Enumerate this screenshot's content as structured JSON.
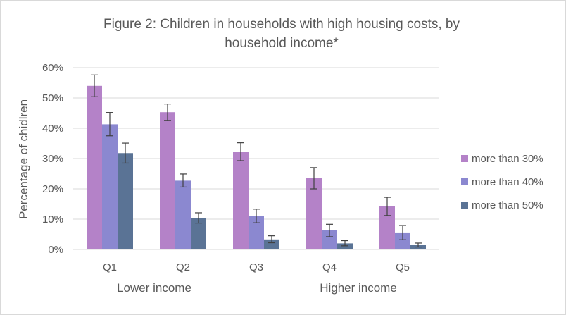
{
  "chart_data": {
    "type": "bar",
    "title_line1": "Figure 2: Children in households with high housing costs, by",
    "title_line2": "household income*",
    "ylabel": "Percentage of chidlren",
    "ylim": [
      0,
      60
    ],
    "yticks": [
      "0%",
      "10%",
      "20%",
      "30%",
      "40%",
      "50%",
      "60%"
    ],
    "categories": [
      "Q1",
      "Q2",
      "Q3",
      "Q4",
      "Q5"
    ],
    "xgroup_labels": {
      "left": "Lower income",
      "right": "Higher income"
    },
    "legend_position": "right",
    "grid": true,
    "series": [
      {
        "name": "more than 30%",
        "color": "#b482c8",
        "values": [
          54,
          45.3,
          32.2,
          23.5,
          14.2
        ],
        "err_low": [
          50.4,
          42.6,
          29.3,
          20.0,
          11.2
        ],
        "err_high": [
          57.6,
          48.0,
          35.2,
          27.0,
          17.2
        ]
      },
      {
        "name": "more than 40%",
        "color": "#8b88d0",
        "values": [
          41.3,
          22.7,
          11.0,
          6.3,
          5.6
        ],
        "err_low": [
          37.5,
          20.6,
          8.8,
          4.2,
          3.2
        ],
        "err_high": [
          45.2,
          24.9,
          13.3,
          8.3,
          7.9
        ]
      },
      {
        "name": "more than 50%",
        "color": "#5a7395",
        "values": [
          31.8,
          10.4,
          3.3,
          2.0,
          1.4
        ],
        "err_low": [
          28.5,
          8.7,
          2.2,
          1.2,
          0.8
        ],
        "err_high": [
          35.1,
          12.1,
          4.5,
          2.9,
          2.1
        ]
      }
    ]
  }
}
